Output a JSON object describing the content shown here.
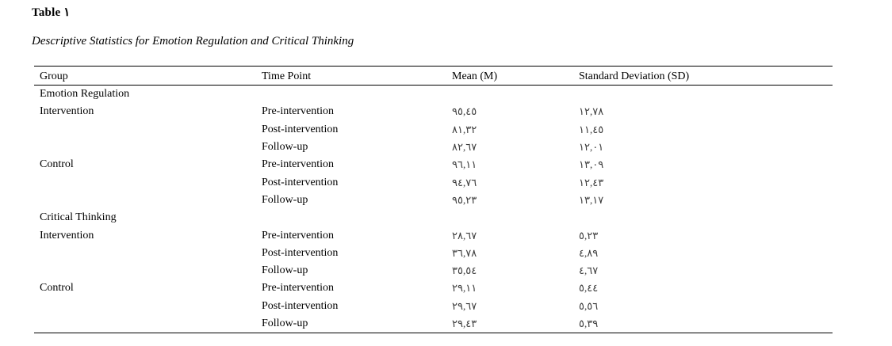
{
  "colors": {
    "background": "#ffffff",
    "text": "#000000",
    "rule": "#000000",
    "numerals": "#3c3c3c"
  },
  "title": {
    "label": "Table ١"
  },
  "caption": "Descriptive Statistics for Emotion Regulation and Critical Thinking",
  "table": {
    "columns": [
      "Group",
      "Time Point",
      "Mean (M)",
      "Standard Deviation (SD)"
    ],
    "rows": [
      {
        "group": "Emotion Regulation",
        "time": "",
        "mean": "",
        "sd": ""
      },
      {
        "group": "Intervention",
        "time": "Pre-intervention",
        "mean": "٩٥,٤٥",
        "sd": "١٢,٧٨"
      },
      {
        "group": "",
        "time": "Post-intervention",
        "mean": "٨١,٣٢",
        "sd": "١١,٤٥"
      },
      {
        "group": "",
        "time": "Follow-up",
        "mean": "٨٢,٦٧",
        "sd": "١٢,٠١"
      },
      {
        "group": "Control",
        "time": "Pre-intervention",
        "mean": "٩٦,١١",
        "sd": "١٣,٠٩"
      },
      {
        "group": "",
        "time": "Post-intervention",
        "mean": "٩٤,٧٦",
        "sd": "١٢,٤٣"
      },
      {
        "group": "",
        "time": "Follow-up",
        "mean": "٩٥,٢٣",
        "sd": "١٣,١٧"
      },
      {
        "group": "Critical Thinking",
        "time": "",
        "mean": "",
        "sd": ""
      },
      {
        "group": "Intervention",
        "time": "Pre-intervention",
        "mean": "٢٨,٦٧",
        "sd": "٥,٢٣"
      },
      {
        "group": "",
        "time": "Post-intervention",
        "mean": "٣٦,٧٨",
        "sd": "٤,٨٩"
      },
      {
        "group": "",
        "time": "Follow-up",
        "mean": "٣٥,٥٤",
        "sd": "٤,٦٧"
      },
      {
        "group": "Control",
        "time": "Pre-intervention",
        "mean": "٢٩,١١",
        "sd": "٥,٤٤"
      },
      {
        "group": "",
        "time": "Post-intervention",
        "mean": "٢٩,٦٧",
        "sd": "٥,٥٦"
      },
      {
        "group": "",
        "time": "Follow-up",
        "mean": "٢٩,٤٣",
        "sd": "٥,٣٩"
      }
    ]
  }
}
